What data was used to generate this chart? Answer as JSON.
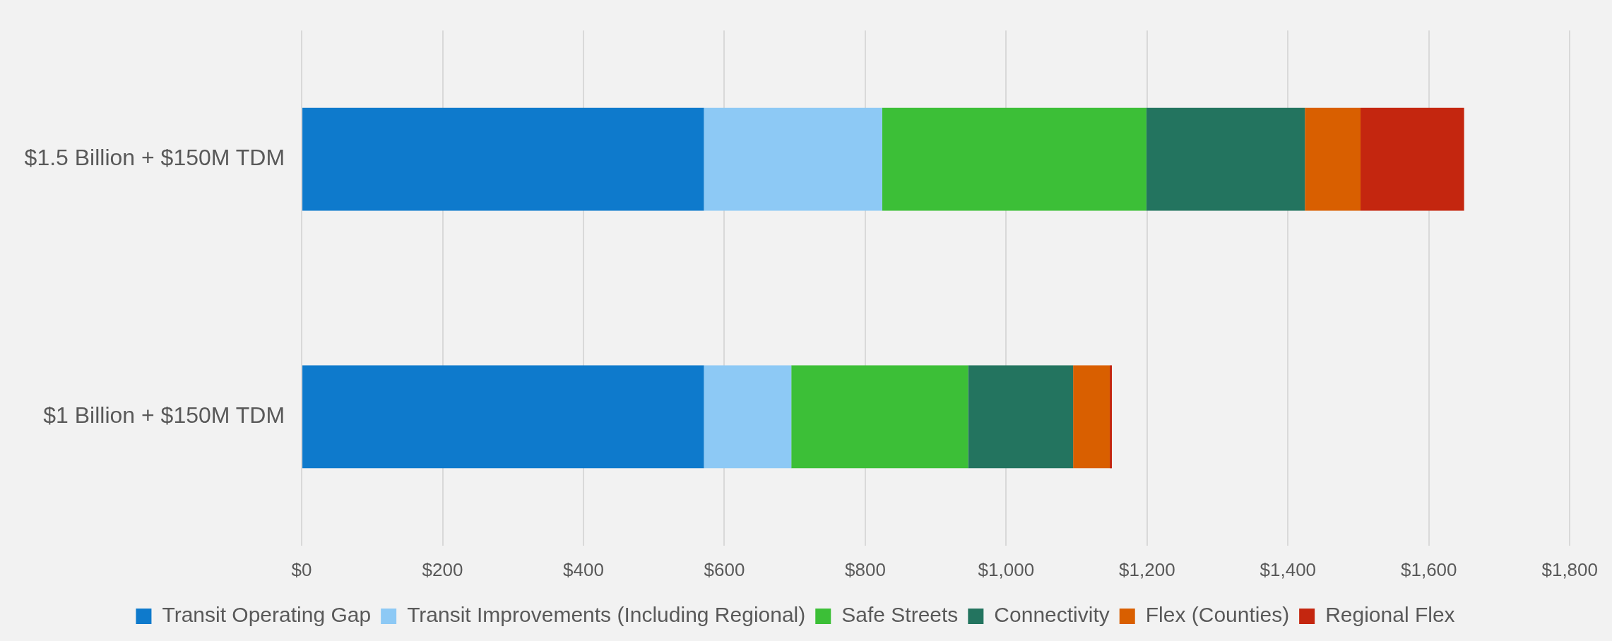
{
  "chart_data": {
    "type": "bar",
    "orientation": "horizontal",
    "stacked": true,
    "categories": [
      "$1.5 Billion + $150M TDM",
      "$1 Billion + $150M TDM"
    ],
    "series": [
      {
        "name": "Transit Operating Gap",
        "color": "#0e7acc",
        "values": [
          571,
          571
        ]
      },
      {
        "name": "Transit Improvements (Including Regional)",
        "color": "#8dc9f5",
        "values": [
          253,
          124
        ]
      },
      {
        "name": "Safe Streets",
        "color": "#3cbf37",
        "values": [
          375,
          251
        ]
      },
      {
        "name": "Connectivity",
        "color": "#23745f",
        "values": [
          225,
          149
        ]
      },
      {
        "name": "Flex (Counties)",
        "color": "#d95f00",
        "values": [
          79,
          52
        ]
      },
      {
        "name": "Regional Flex",
        "color": "#c4260f",
        "values": [
          147,
          3
        ]
      }
    ],
    "xlim": [
      0,
      1800
    ],
    "xticks": [
      {
        "value": 0,
        "label": "$0"
      },
      {
        "value": 200,
        "label": "$200"
      },
      {
        "value": 400,
        "label": "$400"
      },
      {
        "value": 600,
        "label": "$600"
      },
      {
        "value": 800,
        "label": "$800"
      },
      {
        "value": 1000,
        "label": "$1,000"
      },
      {
        "value": 1200,
        "label": "$1,200"
      },
      {
        "value": 1400,
        "label": "$1,400"
      },
      {
        "value": 1600,
        "label": "$1,600"
      },
      {
        "value": 1800,
        "label": "$1,800"
      }
    ],
    "grid": "x",
    "legend": "bottom"
  }
}
